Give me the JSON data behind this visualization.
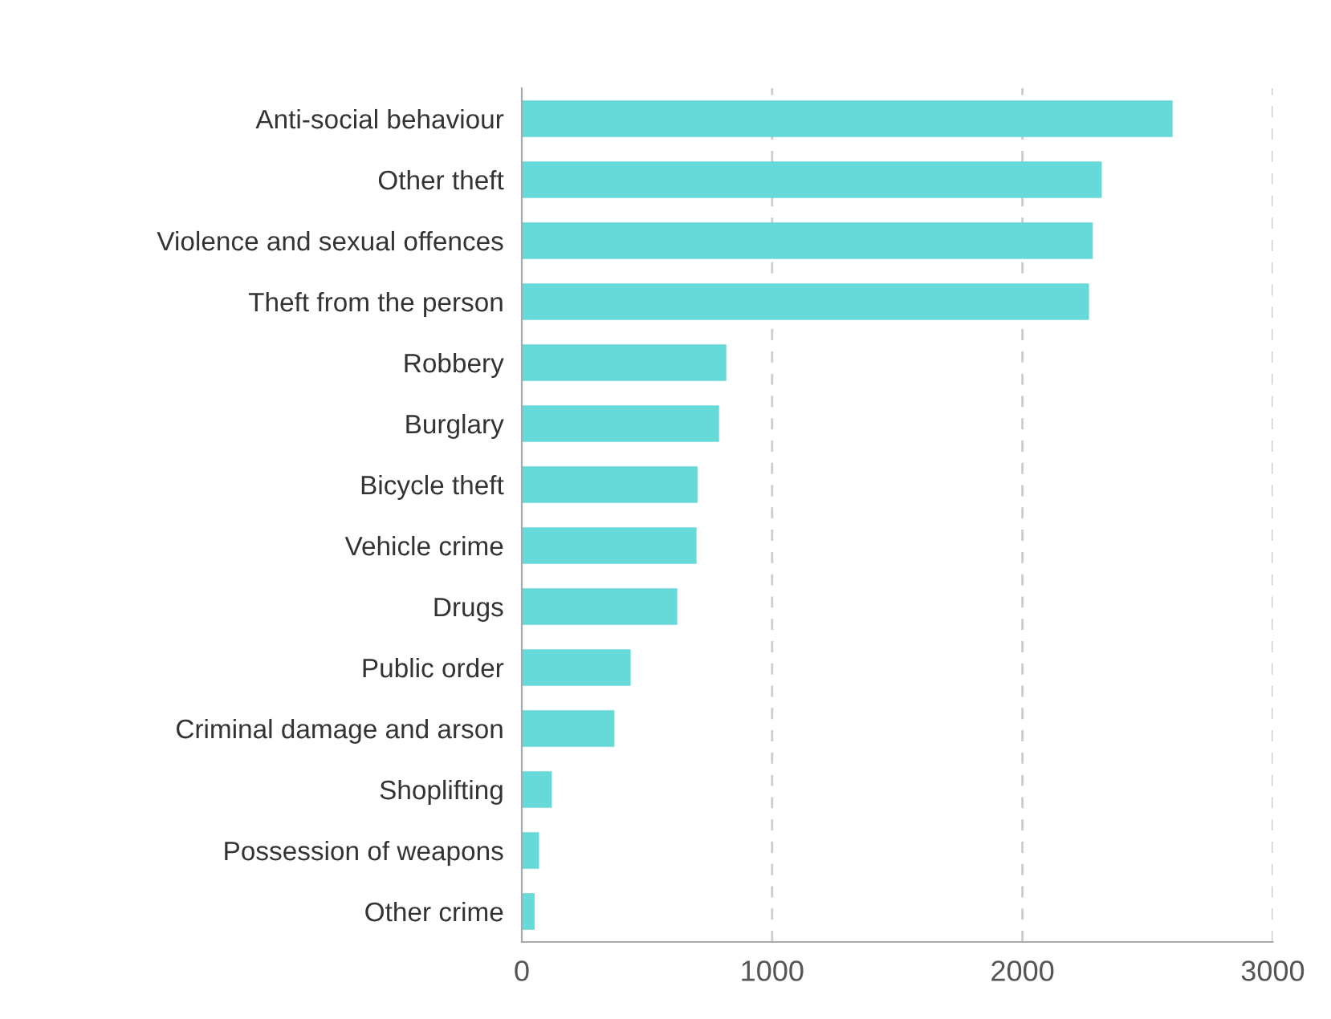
{
  "chart_data": {
    "type": "bar",
    "orientation": "horizontal",
    "categories": [
      "Anti-social behaviour",
      "Other theft",
      "Violence and sexual offences",
      "Theft from the person",
      "Robbery",
      "Burglary",
      "Bicycle theft",
      "Vehicle crime",
      "Drugs",
      "Public order",
      "Criminal damage and arson",
      "Shoplifting",
      "Possession of weapons",
      "Other crime"
    ],
    "values": [
      2600,
      2317,
      2281,
      2266,
      817,
      788,
      702,
      698,
      621,
      435,
      370,
      120,
      69,
      51
    ],
    "color": "#66d9d9",
    "xlim": [
      0,
      3000
    ],
    "xticks": [
      0,
      1000,
      2000,
      3000
    ],
    "grid": "x",
    "legend": false
  }
}
